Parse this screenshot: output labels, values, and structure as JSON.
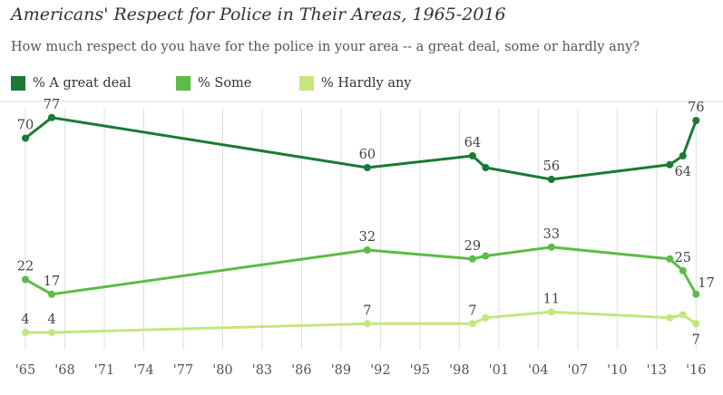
{
  "chart_data": {
    "type": "line",
    "title": "Americans' Respect for Police in Their Areas, 1965-2016",
    "subtitle": "How much respect do you have for the police in your area -- a great deal, some or hardly any?",
    "x_tick_labels": [
      "'65",
      "'68",
      "'71",
      "'74",
      "'77",
      "'80",
      "'83",
      "'86",
      "'89",
      "'92",
      "'95",
      "'98",
      "'01",
      "'04",
      "'07",
      "'10",
      "'13",
      "'16"
    ],
    "xlim": [
      1965,
      2016.6
    ],
    "ylim": [
      0,
      80
    ],
    "grid": "vertical",
    "legend_position": "top",
    "series": [
      {
        "name": "% A great deal",
        "color": "#1a7a35",
        "x": [
          1965,
          1967,
          1991,
          1999,
          2000,
          2005,
          2014,
          2015,
          2016
        ],
        "y": [
          70,
          77,
          60,
          64,
          60,
          56,
          61,
          64,
          76
        ]
      },
      {
        "name": "% Some",
        "color": "#5dbb46",
        "x": [
          1965,
          1967,
          1991,
          1999,
          2000,
          2005,
          2014,
          2015,
          2016
        ],
        "y": [
          22,
          17,
          32,
          29,
          30,
          33,
          29,
          25,
          17
        ]
      },
      {
        "name": "% Hardly any",
        "color": "#c5e67e",
        "x": [
          1965,
          1967,
          1991,
          1999,
          2000,
          2005,
          2014,
          2015,
          2016
        ],
        "y": [
          4,
          4,
          7,
          7,
          9,
          11,
          9,
          10,
          7
        ]
      }
    ],
    "data_labels": [
      {
        "series": 0,
        "point": 0,
        "text": "70",
        "pos": "above"
      },
      {
        "series": 0,
        "point": 1,
        "text": "77",
        "pos": "above"
      },
      {
        "series": 0,
        "point": 2,
        "text": "60",
        "pos": "above"
      },
      {
        "series": 0,
        "point": 3,
        "text": "64",
        "pos": "above"
      },
      {
        "series": 0,
        "point": 5,
        "text": "56",
        "pos": "above"
      },
      {
        "series": 0,
        "point": 7,
        "text": "64",
        "pos": "below"
      },
      {
        "series": 0,
        "point": 8,
        "text": "76",
        "pos": "above"
      },
      {
        "series": 1,
        "point": 0,
        "text": "22",
        "pos": "above"
      },
      {
        "series": 1,
        "point": 1,
        "text": "17",
        "pos": "above"
      },
      {
        "series": 1,
        "point": 2,
        "text": "32",
        "pos": "above"
      },
      {
        "series": 1,
        "point": 3,
        "text": "29",
        "pos": "above"
      },
      {
        "series": 1,
        "point": 5,
        "text": "33",
        "pos": "above"
      },
      {
        "series": 1,
        "point": 7,
        "text": "25",
        "pos": "above"
      },
      {
        "series": 1,
        "point": 8,
        "text": "17",
        "pos": "right"
      },
      {
        "series": 2,
        "point": 0,
        "text": "4",
        "pos": "above"
      },
      {
        "series": 2,
        "point": 1,
        "text": "4",
        "pos": "above"
      },
      {
        "series": 2,
        "point": 2,
        "text": "7",
        "pos": "above"
      },
      {
        "series": 2,
        "point": 3,
        "text": "7",
        "pos": "above"
      },
      {
        "series": 2,
        "point": 5,
        "text": "11",
        "pos": "above"
      },
      {
        "series": 2,
        "point": 8,
        "text": "7",
        "pos": "below"
      }
    ]
  }
}
